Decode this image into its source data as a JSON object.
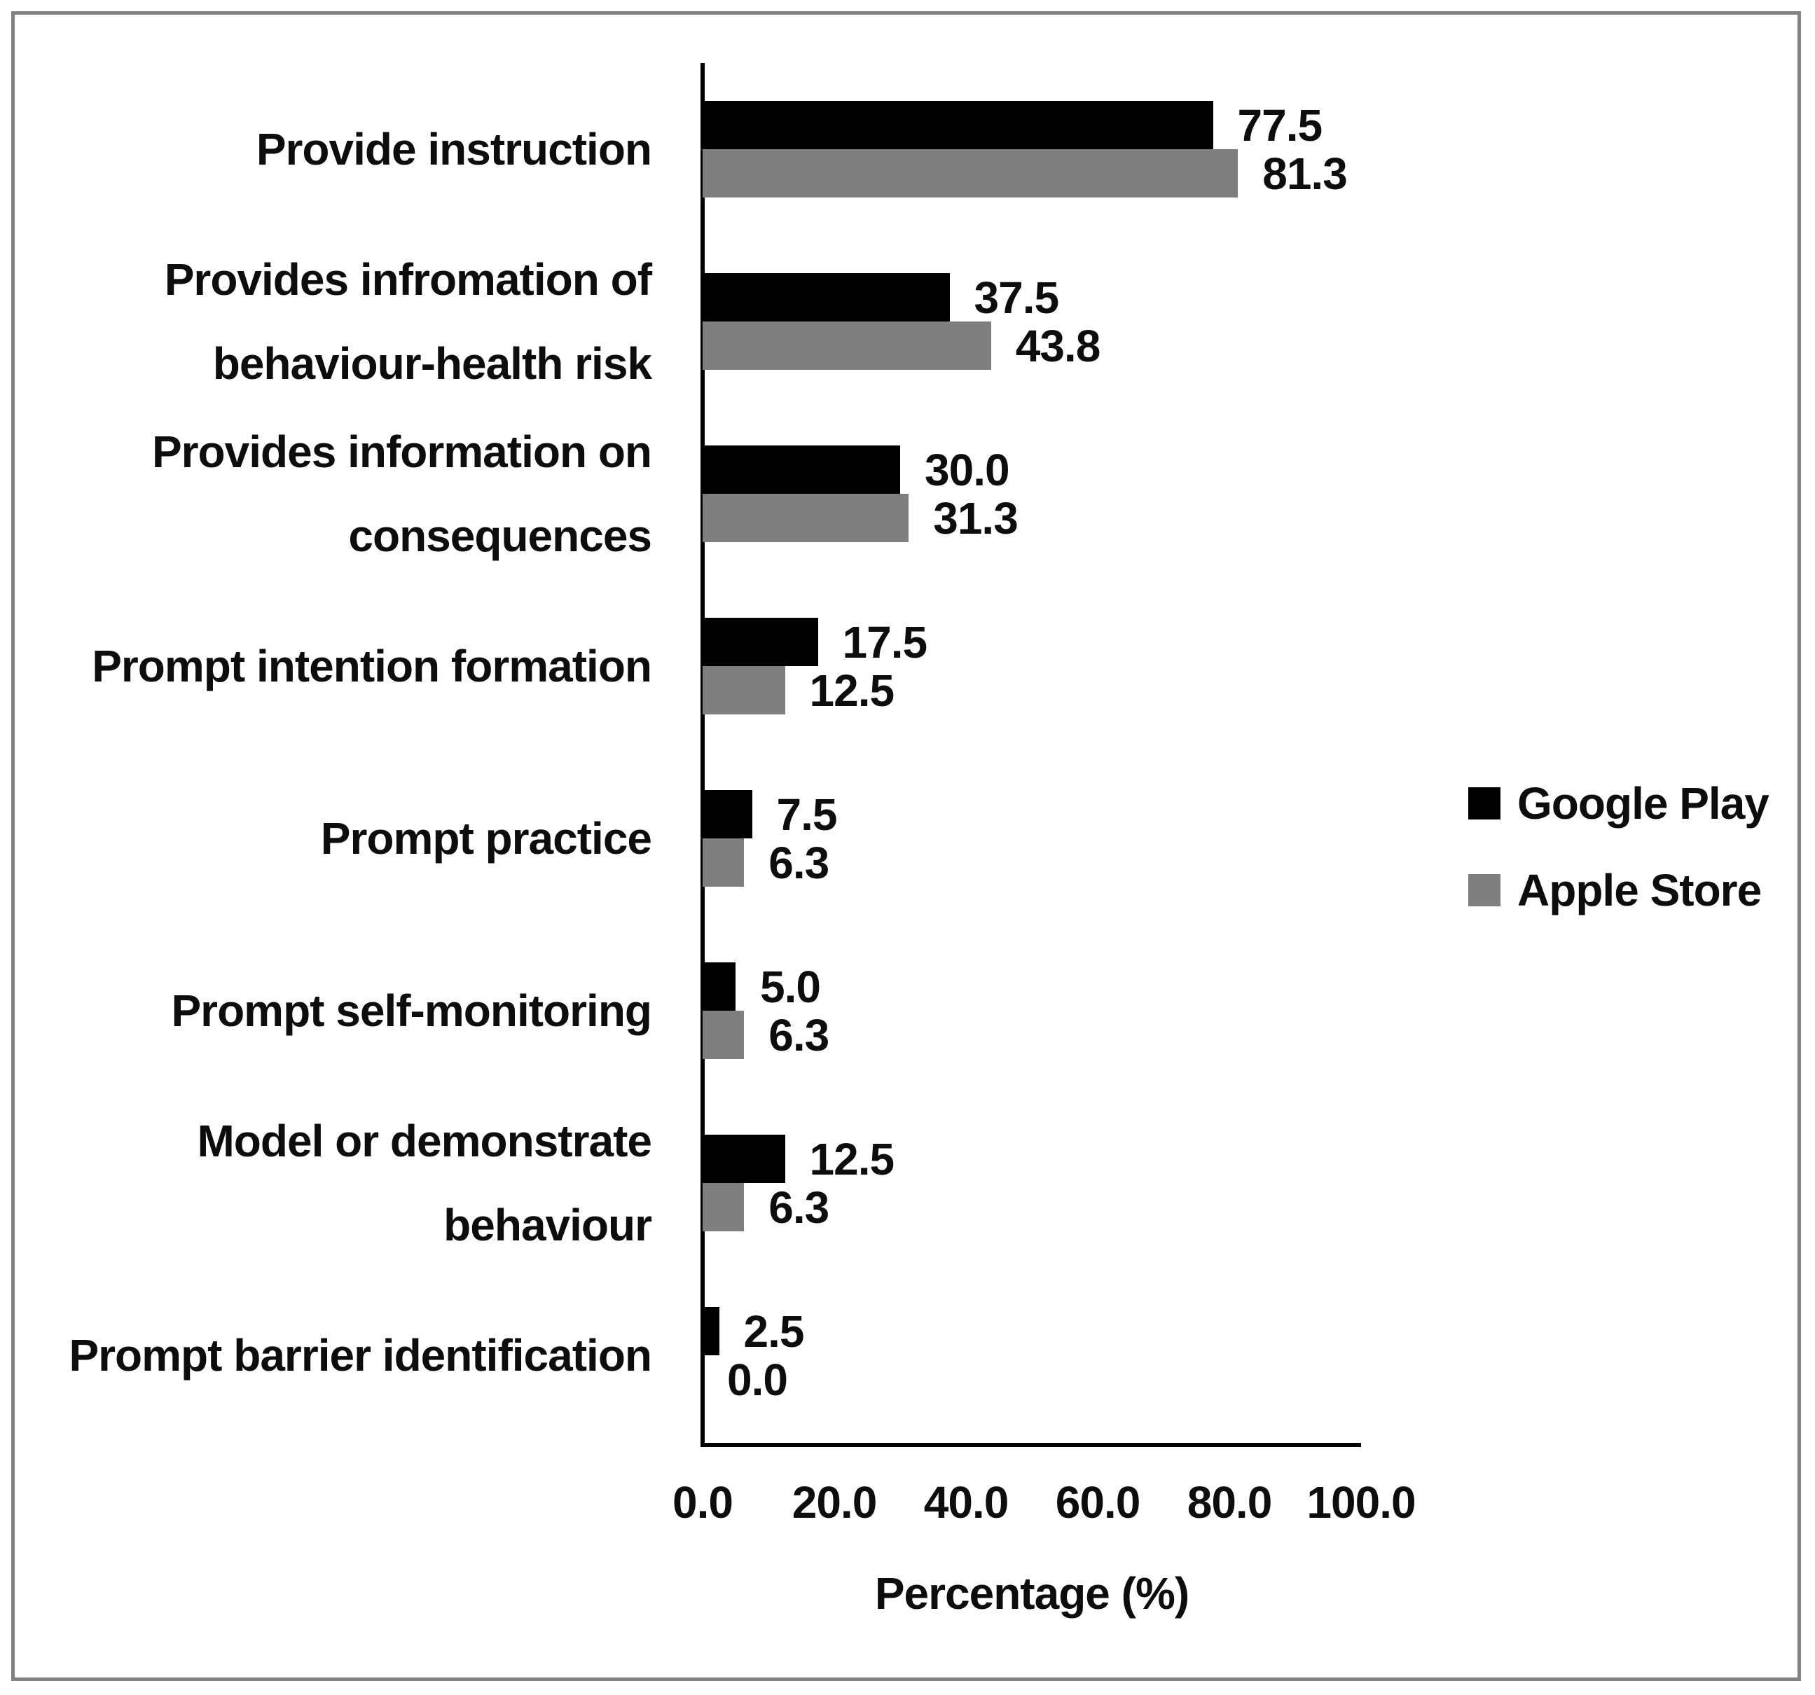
{
  "chart_data": {
    "type": "bar",
    "orientation": "horizontal",
    "title": "",
    "xlabel": "Percentage (%)",
    "ylabel": "",
    "xlim": [
      0,
      100
    ],
    "grid": false,
    "x_ticks": [
      "0.0",
      "20.0",
      "40.0",
      "60.0",
      "80.0",
      "100.0"
    ],
    "categories": [
      "Provide instruction",
      "Provides infromation of\nbehaviour-health risk",
      "Provides information on\nconsequences",
      "Prompt intention formation",
      "Prompt practice",
      "Prompt self-monitoring",
      "Model or demonstrate\nbehaviour",
      "Prompt barrier identification"
    ],
    "series": [
      {
        "name": "Google Play",
        "color": "#000000",
        "values": [
          77.5,
          37.5,
          30.0,
          17.5,
          7.5,
          5.0,
          12.5,
          2.5
        ],
        "labels": [
          "77.5",
          "37.5",
          "30.0",
          "17.5",
          "7.5",
          "5.0",
          "12.5",
          "2.5"
        ]
      },
      {
        "name": "Apple Store",
        "color": "#7f7f7f",
        "values": [
          81.3,
          43.8,
          31.3,
          12.5,
          6.3,
          6.3,
          6.3,
          0.0
        ],
        "labels": [
          "81.3",
          "43.8",
          "31.3",
          "12.5",
          "6.3",
          "6.3",
          "6.3",
          "0.0"
        ]
      }
    ],
    "legend": {
      "position": "center-right",
      "entries": [
        "Google Play",
        "Apple Store"
      ]
    }
  },
  "frame": {
    "border_color": "#838383",
    "background": "#ffffff"
  }
}
